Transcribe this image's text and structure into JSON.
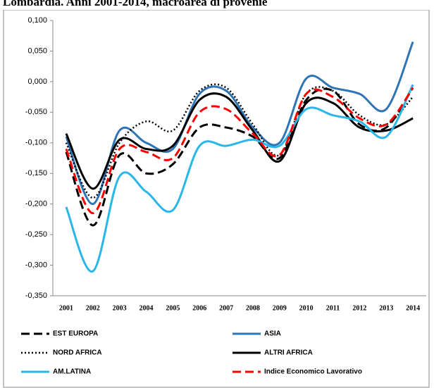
{
  "chart_data": {
    "type": "line",
    "title": "Lombardia. Anni 2001-2014, macroarea di provenie",
    "categories": [
      "2001",
      "2002",
      "2003",
      "2004",
      "2005",
      "2006",
      "2007",
      "2008",
      "2009",
      "2010",
      "2011",
      "2012",
      "2013",
      "2014"
    ],
    "ylim": [
      -0.35,
      0.1
    ],
    "yticks": [
      {
        "value": 0.1,
        "label": "0,100"
      },
      {
        "value": 0.05,
        "label": "0,050"
      },
      {
        "value": 0,
        "label": "0,000"
      },
      {
        "value": -0.05,
        "label": "-0,050"
      },
      {
        "value": -0.1,
        "label": "-0,100"
      },
      {
        "value": -0.15,
        "label": "-0,150"
      },
      {
        "value": -0.2,
        "label": "-0,200"
      },
      {
        "value": -0.25,
        "label": "-0,250"
      },
      {
        "value": -0.3,
        "label": "-0,300"
      },
      {
        "value": -0.35,
        "label": "-0,350"
      }
    ],
    "grid": false,
    "series": [
      {
        "name": "EST EUROPA",
        "color": "#000000",
        "dash": "dashed",
        "values": [
          -0.115,
          -0.235,
          -0.12,
          -0.15,
          -0.135,
          -0.075,
          -0.075,
          -0.09,
          -0.125,
          -0.03,
          -0.015,
          -0.07,
          -0.075,
          -0.01
        ]
      },
      {
        "name": "ASIA",
        "color": "#2e75b6",
        "dash": "solid",
        "values": [
          -0.09,
          -0.2,
          -0.08,
          -0.1,
          -0.11,
          -0.02,
          -0.015,
          -0.075,
          -0.1,
          0.005,
          -0.01,
          -0.02,
          -0.045,
          0.065
        ]
      },
      {
        "name": "NORD AFRICA",
        "color": "#000000",
        "dash": "dotted",
        "values": [
          -0.1,
          -0.19,
          -0.1,
          -0.065,
          -0.08,
          -0.015,
          -0.01,
          -0.07,
          -0.12,
          -0.02,
          -0.015,
          -0.055,
          -0.07,
          -0.025
        ]
      },
      {
        "name": "ALTRI AFRICA",
        "color": "#000000",
        "dash": "solid",
        "values": [
          -0.085,
          -0.175,
          -0.095,
          -0.11,
          -0.105,
          -0.03,
          -0.025,
          -0.08,
          -0.13,
          -0.035,
          -0.035,
          -0.075,
          -0.08,
          -0.06
        ]
      },
      {
        "name": "AM.LATINA",
        "color": "#29b6e8",
        "dash": "solid",
        "values": [
          -0.205,
          -0.31,
          -0.155,
          -0.18,
          -0.21,
          -0.105,
          -0.105,
          -0.095,
          -0.105,
          -0.045,
          -0.055,
          -0.065,
          -0.09,
          -0.005
        ]
      },
      {
        "name": "Indice Economico Lavorativo",
        "color": "#ff0000",
        "dash": "dashed",
        "values": [
          -0.11,
          -0.215,
          -0.11,
          -0.115,
          -0.125,
          -0.05,
          -0.045,
          -0.085,
          -0.12,
          -0.02,
          -0.025,
          -0.06,
          -0.07,
          -0.01
        ]
      }
    ]
  }
}
